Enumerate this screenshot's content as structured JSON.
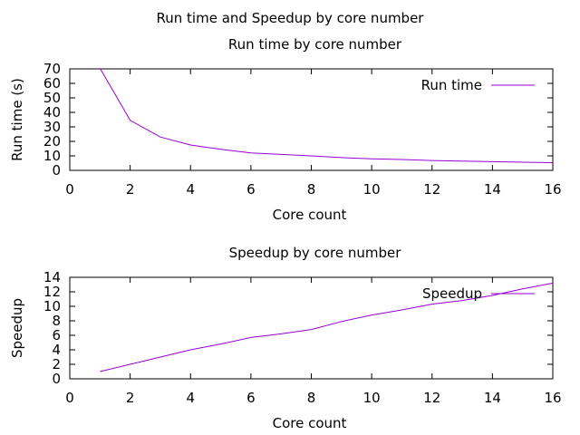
{
  "figure": {
    "title": "Run time and Speedup by core number"
  },
  "chart_data": [
    {
      "type": "line",
      "title": "Run time by core number",
      "xlabel": "Core count",
      "ylabel": "Run time (s)",
      "xlim": [
        0,
        16
      ],
      "ylim": [
        0,
        70
      ],
      "xticks": [
        0,
        2,
        4,
        6,
        8,
        10,
        12,
        14,
        16
      ],
      "yticks": [
        0,
        10,
        20,
        30,
        40,
        50,
        60,
        70
      ],
      "grid": false,
      "legend": "top-right",
      "series": [
        {
          "name": "Run time",
          "color": "#9400d3",
          "x": [
            1,
            2,
            3,
            4,
            5,
            6,
            7,
            8,
            9,
            10,
            11,
            12,
            13,
            14,
            15,
            16
          ],
          "y": [
            70.5,
            34.5,
            23,
            17.5,
            14.5,
            12,
            11,
            10,
            8.8,
            8,
            7.5,
            6.8,
            6.4,
            6,
            5.6,
            5.3
          ]
        }
      ]
    },
    {
      "type": "line",
      "title": "Speedup by core number",
      "xlabel": "Core count",
      "ylabel": "Speedup",
      "xlim": [
        0,
        16
      ],
      "ylim": [
        0,
        14
      ],
      "xticks": [
        0,
        2,
        4,
        6,
        8,
        10,
        12,
        14,
        16
      ],
      "yticks": [
        0,
        2,
        4,
        6,
        8,
        10,
        12,
        14
      ],
      "grid": false,
      "legend": "top-right",
      "series": [
        {
          "name": "Speedup",
          "color": "#9400d3",
          "x": [
            1,
            2,
            3,
            4,
            5,
            6,
            7,
            8,
            9,
            10,
            11,
            12,
            13,
            14,
            15,
            16
          ],
          "y": [
            1,
            2,
            3,
            4,
            4.8,
            5.7,
            6.2,
            6.8,
            7.9,
            8.8,
            9.5,
            10.3,
            10.8,
            11.5,
            12.4,
            13.2
          ]
        }
      ]
    }
  ]
}
